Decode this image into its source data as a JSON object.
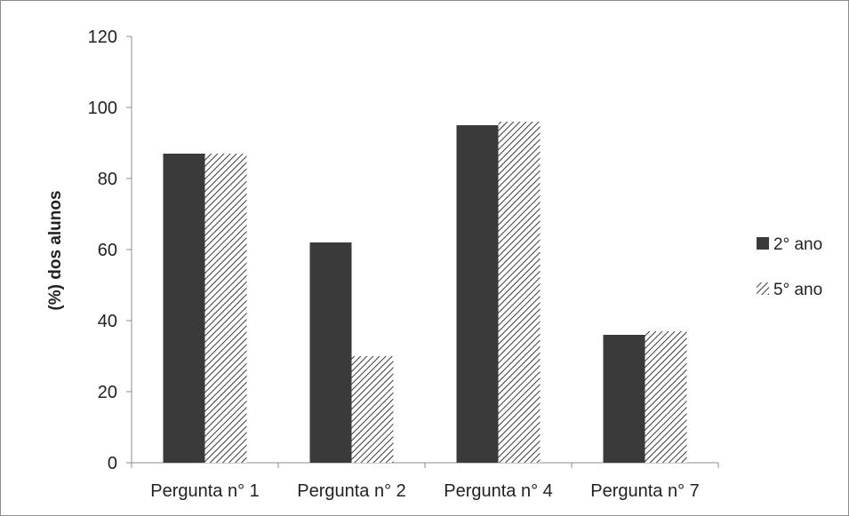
{
  "chart_data": {
    "type": "bar",
    "categories": [
      "Pergunta n° 1",
      "Pergunta n° 2",
      "Pergunta n° 4",
      "Pergunta n° 7"
    ],
    "series": [
      {
        "name": "2° ano",
        "values": [
          87,
          62,
          95,
          36
        ],
        "color": "#3a3a3a",
        "pattern": "solid"
      },
      {
        "name": "5° ano",
        "values": [
          87,
          30,
          96,
          37
        ],
        "color": "#3a3a3a",
        "pattern": "diagonal-hatch"
      }
    ],
    "title": "",
    "xlabel": "",
    "ylabel": "(%) dos alunos",
    "ylim": [
      0,
      120
    ],
    "yticks": [
      "0",
      "20",
      "40",
      "60",
      "80",
      "100",
      "120"
    ],
    "grid": false,
    "legend_position": "right"
  }
}
